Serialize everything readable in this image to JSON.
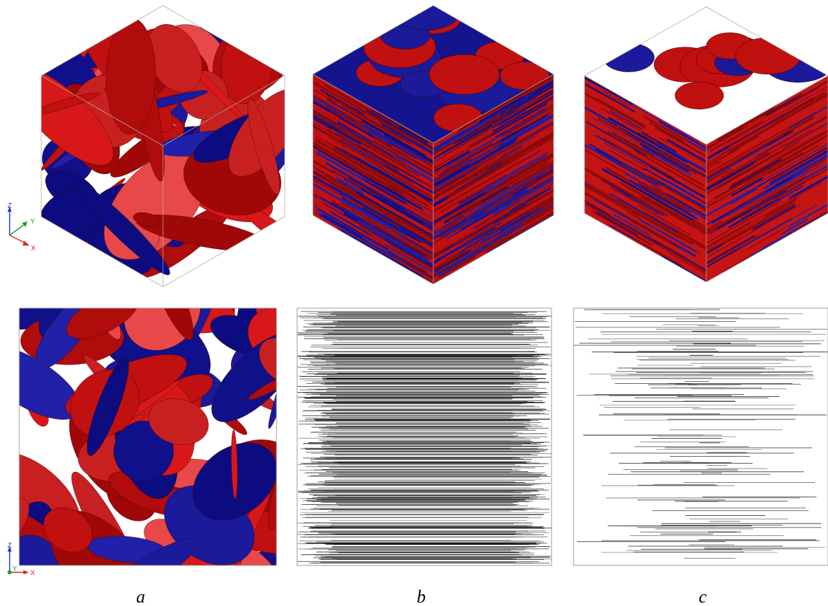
{
  "axes_top": {
    "z": "Z",
    "y": "Y",
    "x": "X"
  },
  "axes_bottom": {
    "z": "Z",
    "y": "Y",
    "x": "X"
  },
  "panels": [
    {
      "label": "a"
    },
    {
      "label": "b"
    },
    {
      "label": "c"
    }
  ]
}
